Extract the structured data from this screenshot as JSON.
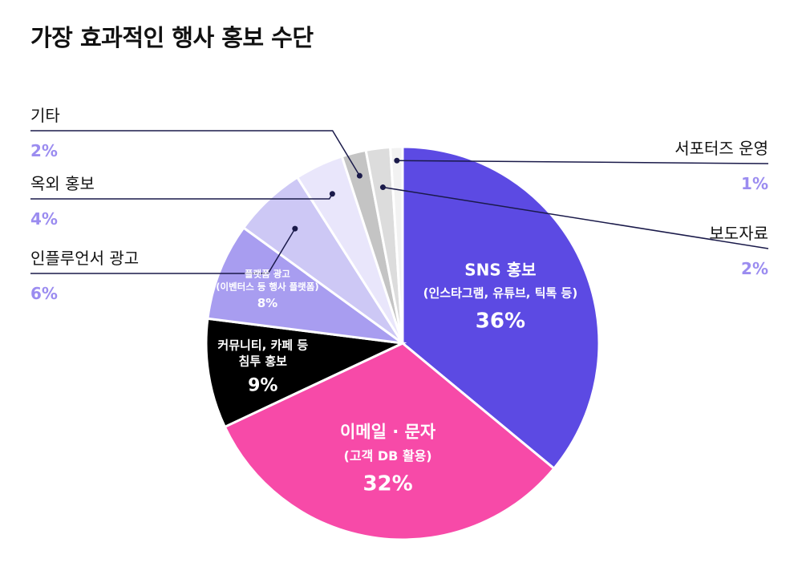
{
  "title": "가장 효과적인 행사 홍보 수단",
  "chart_data": {
    "type": "pie",
    "title": "가장 효과적인 행사 홍보 수단",
    "slices": [
      {
        "name": "SNS 홍보",
        "sub": "(인스타그램, 유튜브, 틱톡 등)",
        "value": 36,
        "pct": "36%",
        "color": "#5c4ae3"
      },
      {
        "name": "이메일 · 문자",
        "sub": "(고객 DB 활용)",
        "value": 32,
        "pct": "32%",
        "color": "#f74aa8"
      },
      {
        "name": "커뮤니티, 카페 등",
        "sub": "침투 홍보",
        "value": 9,
        "pct": "9%",
        "color": "#000000"
      },
      {
        "name": "플랫폼 광고",
        "sub": "(이벤터스 등 행사 플랫폼)",
        "value": 8,
        "pct": "8%",
        "color": "#a89df0"
      },
      {
        "name": "인플루언서 광고",
        "value": 6,
        "pct": "6%",
        "color": "#cdc8f5"
      },
      {
        "name": "옥외 홍보",
        "value": 4,
        "pct": "4%",
        "color": "#e9e6fb"
      },
      {
        "name": "기타",
        "value": 2,
        "pct": "2%",
        "color": "#c4c4c4"
      },
      {
        "name": "보도자료",
        "value": 2,
        "pct": "2%",
        "color": "#dcdcdc"
      },
      {
        "name": "서포터즈 운영",
        "value": 1,
        "pct": "1%",
        "color": "#f2f2f2"
      }
    ]
  }
}
